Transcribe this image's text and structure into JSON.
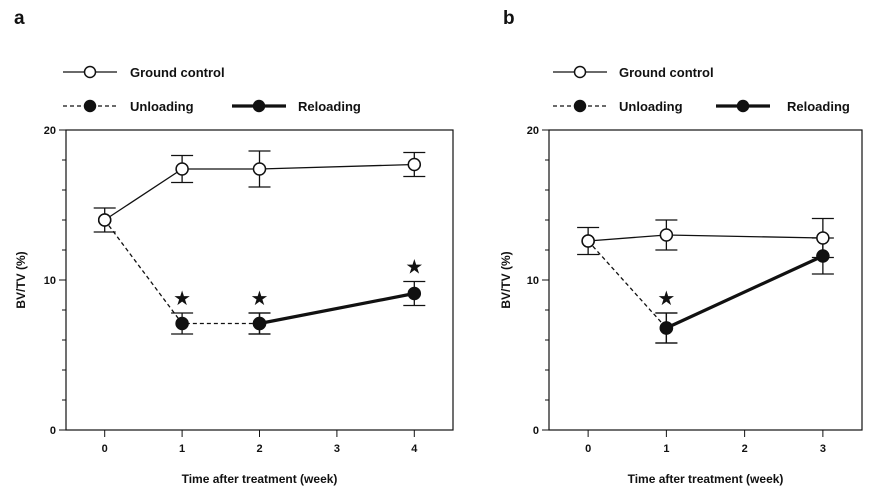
{
  "chart_data": [
    {
      "type": "line",
      "panel": "a",
      "xlabel": "Time after treatment (week)",
      "ylabel": "BV/TV (%)",
      "xticks": [
        0,
        1,
        2,
        3,
        4
      ],
      "xtick_labels": [
        "0",
        "1",
        "2",
        "3",
        "4"
      ],
      "yticks": [
        0,
        10,
        20
      ],
      "ytick_labels": [
        "0",
        "10",
        "20"
      ],
      "xlim": [
        -0.5,
        4.5
      ],
      "ylim": [
        0,
        20
      ],
      "legend": "top",
      "series": [
        {
          "name": "Ground control",
          "marker": "open-circle",
          "line": "solid-thin",
          "x": [
            0,
            1,
            2,
            4
          ],
          "y": [
            14.0,
            17.4,
            17.4,
            17.7
          ],
          "err": [
            0.8,
            0.9,
            1.2,
            0.8
          ]
        },
        {
          "name": "Unloading",
          "marker": "filled-circle",
          "line": "dashed",
          "x": [
            0,
            1,
            2
          ],
          "y": [
            14.0,
            7.1,
            7.1
          ],
          "err": [
            0,
            0.7,
            0.7
          ]
        },
        {
          "name": "Reloading",
          "marker": "filled-circle",
          "line": "solid-thick",
          "x": [
            2,
            4
          ],
          "y": [
            7.1,
            9.1
          ],
          "err": [
            0.7,
            0.8
          ]
        }
      ],
      "annotations": [
        {
          "text": "★",
          "x": 1,
          "y": 7.1,
          "err": 0.7
        },
        {
          "text": "★",
          "x": 2,
          "y": 7.1,
          "err": 0.7
        },
        {
          "text": "★",
          "x": 4,
          "y": 9.1,
          "err": 0.8
        }
      ]
    },
    {
      "type": "line",
      "panel": "b",
      "xlabel": "Time after treatment (week)",
      "ylabel": "BV/TV (%)",
      "xticks": [
        0,
        1,
        2,
        3
      ],
      "xtick_labels": [
        "0",
        "1",
        "2",
        "3"
      ],
      "yticks": [
        0,
        10,
        20
      ],
      "ytick_labels": [
        "0",
        "10",
        "20"
      ],
      "xlim": [
        -0.5,
        3.5
      ],
      "ylim": [
        0,
        20
      ],
      "legend": "top",
      "series": [
        {
          "name": "Ground control",
          "marker": "open-circle",
          "line": "solid-thin",
          "x": [
            0,
            1,
            3
          ],
          "y": [
            12.6,
            13.0,
            12.8
          ],
          "err": [
            0.9,
            1.0,
            1.3
          ]
        },
        {
          "name": "Unloading",
          "marker": "filled-circle",
          "line": "dashed",
          "x": [
            0,
            1
          ],
          "y": [
            12.6,
            6.8
          ],
          "err": [
            0,
            1.0
          ]
        },
        {
          "name": "Reloading",
          "marker": "filled-circle",
          "line": "solid-thick",
          "x": [
            1,
            3
          ],
          "y": [
            6.8,
            11.6
          ],
          "err": [
            1.0,
            1.2
          ]
        }
      ],
      "annotations": [
        {
          "text": "★",
          "x": 1,
          "y": 6.8,
          "err": 1.0
        }
      ]
    }
  ]
}
